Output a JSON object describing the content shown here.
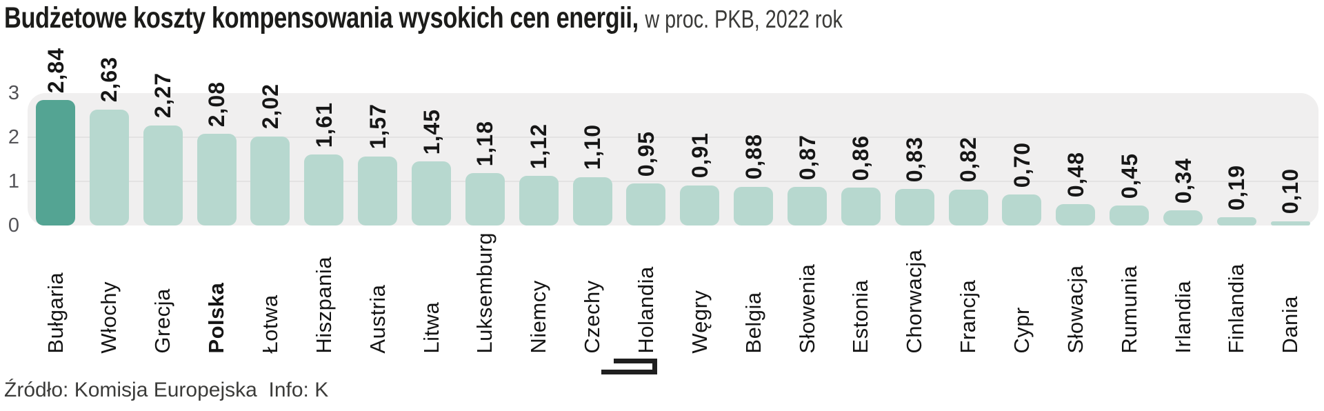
{
  "title": {
    "bold": "Budżetowe koszty kompensowania wysokich cen energii,",
    "regular": "w proc. PKB, 2022 rok"
  },
  "source": {
    "text": "Źródło: Komisja Europejska  Info: K"
  },
  "chart_data": {
    "type": "bar",
    "title": "Budżetowe koszty kompensowania wysokich cen energii, w proc. PKB, 2022 rok",
    "categories": [
      "Bułgaria",
      "Włochy",
      "Grecja",
      "Polska",
      "Łotwa",
      "Hiszpania",
      "Austria",
      "Litwa",
      "Luksemburg",
      "Niemcy",
      "Czechy",
      "Holandia",
      "Węgry",
      "Belgia",
      "Słowenia",
      "Estonia",
      "Chorwacja",
      "Francja",
      "Cypr",
      "Słowacja",
      "Rumunia",
      "Irlandia",
      "Finlandia",
      "Dania"
    ],
    "values": [
      2.84,
      2.63,
      2.27,
      2.08,
      2.02,
      1.61,
      1.57,
      1.45,
      1.18,
      1.12,
      1.1,
      0.95,
      0.91,
      0.88,
      0.87,
      0.86,
      0.83,
      0.82,
      0.7,
      0.48,
      0.45,
      0.34,
      0.19,
      0.1
    ],
    "value_labels": [
      "2,84",
      "2,63",
      "2,27",
      "2,08",
      "2,02",
      "1,61",
      "1,57",
      "1,45",
      "1,18",
      "1,12",
      "1,10",
      "0,95",
      "0,91",
      "0,88",
      "0,87",
      "0,86",
      "0,83",
      "0,82",
      "0,70",
      "0,48",
      "0,45",
      "0,34",
      "0,19",
      "0,10"
    ],
    "highlight_category": "Bułgaria",
    "bold_category": "Polska",
    "xlabel": "",
    "ylabel": "",
    "ylim": [
      0,
      3
    ],
    "yticks": [
      0,
      1,
      2,
      3
    ],
    "grid": "horizontal, at 1 and 2 only",
    "legend": "none",
    "colors": {
      "bar_default": "#b7d8cf",
      "bar_highlight": "#54a493",
      "plot_background": "#f0efef",
      "gridline": "#e3e2e2",
      "axis_label": "#535357",
      "text": "#161616"
    }
  }
}
